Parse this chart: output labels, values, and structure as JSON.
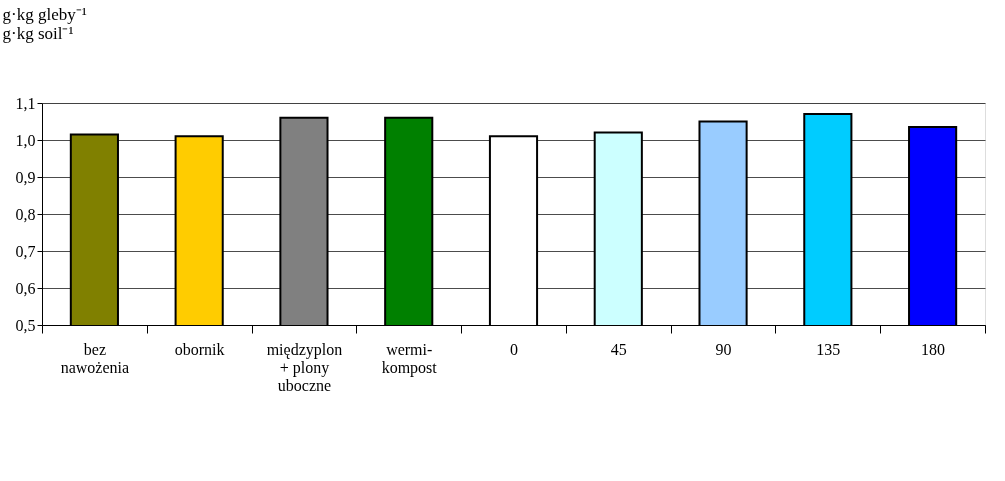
{
  "chart_data": {
    "type": "bar",
    "ylabel": "g·kg gleby⁻¹\ng·kg soil⁻¹",
    "categories": [
      "bez\nnawożenia",
      "obornik",
      "międzyplon\n+ plony\nuboczne",
      "wermi-\nkompost",
      "0",
      "45",
      "90",
      "135",
      "180"
    ],
    "values": [
      1.015,
      1.01,
      1.06,
      1.06,
      1.01,
      1.02,
      1.05,
      1.07,
      1.035
    ],
    "colors": [
      "#808000",
      "#ffcc00",
      "#808080",
      "#008000",
      "#ffffff",
      "#ccffff",
      "#99ccff",
      "#00ccff",
      "#0000ff"
    ],
    "ylim": [
      0.5,
      1.1
    ],
    "yticks": [
      {
        "value": 0.5,
        "label": "0,5"
      },
      {
        "value": 0.6,
        "label": "0,6"
      },
      {
        "value": 0.7,
        "label": "0,7"
      },
      {
        "value": 0.8,
        "label": "0,8"
      },
      {
        "value": 0.9,
        "label": "0,9"
      },
      {
        "value": 1.0,
        "label": "1,0"
      },
      {
        "value": 1.1,
        "label": "1,1"
      }
    ],
    "grid": "y"
  }
}
